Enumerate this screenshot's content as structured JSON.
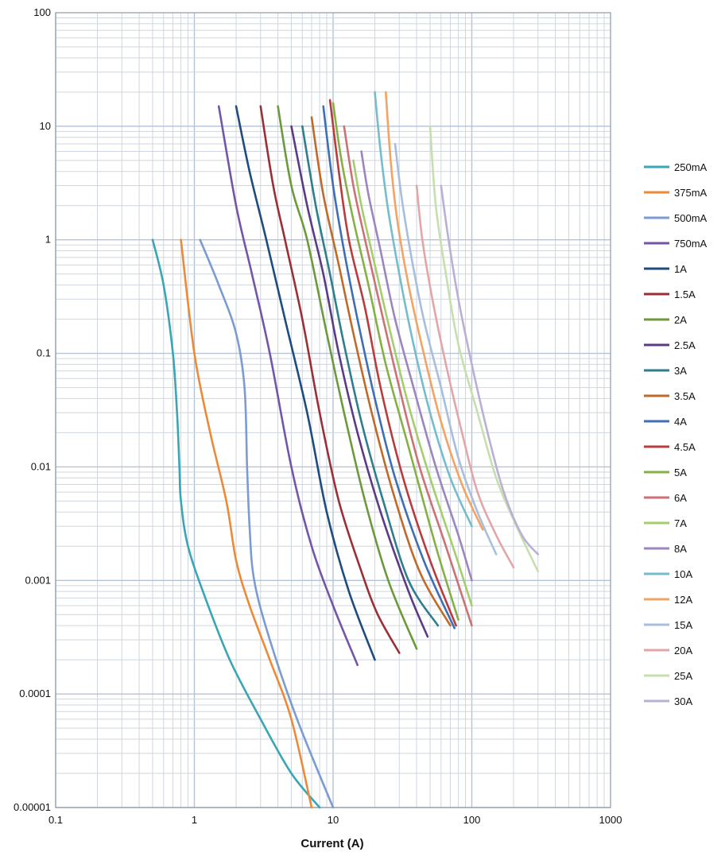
{
  "chart_data": {
    "type": "line",
    "title": "",
    "xlabel": "Current (A)",
    "ylabel": "",
    "x_scale": "log",
    "y_scale": "log",
    "xlim": [
      0.1,
      1000
    ],
    "ylim": [
      1e-05,
      100
    ],
    "x_ticks": [
      "0.1",
      "1",
      "10",
      "100",
      "1000"
    ],
    "y_ticks": [
      "0.00001",
      "0.0001",
      "0.001",
      "0.01",
      "0.1",
      "1",
      "10",
      "100"
    ],
    "grid": true,
    "legend_position": "right",
    "series": [
      {
        "name": "250mA",
        "color": "#3aa5b5",
        "x": [
          0.5,
          0.6,
          0.7,
          0.75,
          0.78,
          0.8,
          0.9,
          1.2,
          1.8,
          3,
          5,
          8
        ],
        "y": [
          1,
          0.4,
          0.1,
          0.03,
          0.01,
          0.005,
          0.002,
          0.0007,
          0.0002,
          6e-05,
          2e-05,
          1e-05
        ]
      },
      {
        "name": "375mA",
        "color": "#ec8a37",
        "x": [
          0.8,
          1,
          1.3,
          1.7,
          2,
          2.5,
          3.5,
          5,
          7
        ],
        "y": [
          1,
          0.1,
          0.02,
          0.005,
          0.0015,
          0.0006,
          0.0002,
          6e-05,
          1e-05
        ]
      },
      {
        "name": "500mA",
        "color": "#7b9bd2",
        "x": [
          1.1,
          1.5,
          2,
          2.3,
          2.4,
          2.5,
          2.7,
          3.5,
          5.5,
          10
        ],
        "y": [
          1,
          0.4,
          0.15,
          0.05,
          0.01,
          0.003,
          0.001,
          0.0003,
          6e-05,
          1e-05
        ]
      },
      {
        "name": "750mA",
        "color": "#7356a6",
        "x": [
          1.5,
          2,
          2.6,
          3.5,
          5,
          7,
          10,
          15
        ],
        "y": [
          15,
          2,
          0.5,
          0.1,
          0.01,
          0.002,
          0.0006,
          0.00018
        ]
      },
      {
        "name": "1A",
        "color": "#1e4c7e",
        "x": [
          2,
          2.5,
          3.3,
          4.5,
          6.5,
          9,
          13,
          20
        ],
        "y": [
          15,
          4,
          1,
          0.2,
          0.03,
          0.004,
          0.0008,
          0.0002
        ]
      },
      {
        "name": "1.5A",
        "color": "#9a3035",
        "x": [
          3,
          3.7,
          4.5,
          6,
          8,
          11,
          16,
          21,
          30
        ],
        "y": [
          15,
          3,
          1,
          0.2,
          0.03,
          0.005,
          0.0012,
          0.0005,
          0.00023
        ]
      },
      {
        "name": "2A",
        "color": "#6c9a3a",
        "x": [
          4,
          5,
          6.5,
          9,
          12,
          17,
          25,
          40
        ],
        "y": [
          15,
          3,
          1,
          0.15,
          0.03,
          0.005,
          0.001,
          0.00025
        ]
      },
      {
        "name": "2.5A",
        "color": "#5b3b84",
        "x": [
          5,
          6.5,
          8.5,
          11,
          15,
          22,
          35,
          48
        ],
        "y": [
          10,
          2,
          0.5,
          0.1,
          0.02,
          0.004,
          0.0008,
          0.00032
        ]
      },
      {
        "name": "3A",
        "color": "#2f7d8d",
        "x": [
          6,
          7.5,
          9.5,
          12,
          16,
          23,
          35,
          57
        ],
        "y": [
          10,
          2,
          0.5,
          0.12,
          0.025,
          0.005,
          0.001,
          0.0004
        ]
      },
      {
        "name": "3.5A",
        "color": "#c06a2a",
        "x": [
          7,
          8.5,
          11,
          14,
          19,
          27,
          42,
          70
        ],
        "y": [
          12,
          2.5,
          0.6,
          0.15,
          0.03,
          0.006,
          0.0012,
          0.0004
        ]
      },
      {
        "name": "4A",
        "color": "#3f6fb2",
        "x": [
          8.5,
          10,
          12,
          15,
          20,
          28,
          45,
          75
        ],
        "y": [
          15,
          3,
          0.8,
          0.2,
          0.04,
          0.008,
          0.0015,
          0.00038
        ]
      },
      {
        "name": "4.5A",
        "color": "#b83c3e",
        "x": [
          9.5,
          11,
          13,
          17,
          22,
          32,
          50,
          77
        ],
        "y": [
          17,
          4,
          1,
          0.25,
          0.05,
          0.008,
          0.0015,
          0.0004
        ]
      },
      {
        "name": "5A",
        "color": "#86b045",
        "x": [
          10,
          11.5,
          14,
          18,
          24,
          35,
          55,
          80
        ],
        "y": [
          16,
          5,
          1.5,
          0.4,
          0.08,
          0.015,
          0.002,
          0.00045
        ]
      },
      {
        "name": "6A",
        "color": "#cc7276",
        "x": [
          12,
          14,
          17,
          22,
          30,
          42,
          65,
          100
        ],
        "y": [
          10,
          3,
          1,
          0.25,
          0.05,
          0.01,
          0.002,
          0.0004
        ]
      },
      {
        "name": "7A",
        "color": "#a6cd6d",
        "x": [
          14,
          16,
          20,
          26,
          35,
          50,
          75,
          100
        ],
        "y": [
          5,
          2,
          0.6,
          0.15,
          0.035,
          0.008,
          0.0018,
          0.0006
        ]
      },
      {
        "name": "8A",
        "color": "#9b86c0",
        "x": [
          16,
          18,
          22,
          28,
          38,
          55,
          80,
          100
        ],
        "y": [
          6,
          2.5,
          0.8,
          0.2,
          0.05,
          0.01,
          0.0025,
          0.001
        ]
      },
      {
        "name": "10A",
        "color": "#75bccd",
        "x": [
          20,
          22,
          25,
          30,
          38,
          50,
          70,
          100
        ],
        "y": [
          20,
          6,
          1.8,
          0.5,
          0.12,
          0.03,
          0.008,
          0.003
        ]
      },
      {
        "name": "12A",
        "color": "#f2a464",
        "x": [
          24,
          26,
          29,
          35,
          45,
          60,
          85,
          120
        ],
        "y": [
          20,
          5,
          1.5,
          0.4,
          0.1,
          0.025,
          0.007,
          0.0028
        ]
      },
      {
        "name": "15A",
        "color": "#a8bedf",
        "x": [
          28,
          31,
          36,
          45,
          60,
          80,
          110,
          150
        ],
        "y": [
          7,
          2.5,
          0.8,
          0.2,
          0.05,
          0.012,
          0.004,
          0.0017
        ]
      },
      {
        "name": "20A",
        "color": "#e3a6a8",
        "x": [
          40,
          44,
          52,
          65,
          85,
          110,
          150,
          200
        ],
        "y": [
          3,
          1,
          0.3,
          0.08,
          0.02,
          0.006,
          0.0025,
          0.0013
        ]
      },
      {
        "name": "25A",
        "color": "#c7dfae",
        "x": [
          50,
          55,
          65,
          80,
          110,
          150,
          210,
          300
        ],
        "y": [
          10,
          2,
          0.5,
          0.12,
          0.03,
          0.008,
          0.003,
          0.0012
        ]
      },
      {
        "name": "30A",
        "color": "#b9b0d4",
        "x": [
          60,
          68,
          80,
          100,
          130,
          170,
          230,
          300
        ],
        "y": [
          3,
          1,
          0.3,
          0.08,
          0.02,
          0.006,
          0.0025,
          0.0017
        ]
      }
    ]
  }
}
